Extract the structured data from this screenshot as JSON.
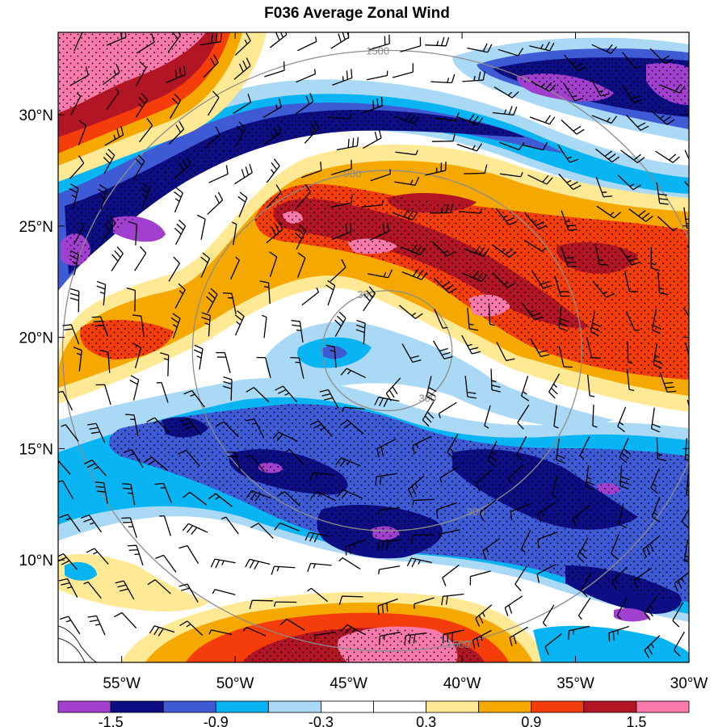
{
  "chart_data": {
    "type": "heatmap",
    "title": "F036 Average Zonal Wind",
    "x_axis": {
      "ticks": [
        -55,
        -50,
        -45,
        -40,
        -35,
        -30
      ],
      "tick_labels": [
        "55°W",
        "50°W",
        "45°W",
        "40°W",
        "35°W",
        "30°W"
      ],
      "range": [
        -57.8,
        -30
      ]
    },
    "y_axis": {
      "ticks": [
        10,
        15,
        20,
        25,
        30
      ],
      "tick_labels": [
        "10°N",
        "15°N",
        "20°N",
        "25°N",
        "30°N"
      ],
      "range": [
        5.4,
        33.7
      ]
    },
    "colorbar": {
      "colors": [
        "#a13fcf",
        "#0d0d84",
        "#3e5bd5",
        "#09b4f2",
        "#a9d9f5",
        "#ffffff",
        "#ffffff",
        "#ffe994",
        "#f5a800",
        "#f43d0a",
        "#b21524",
        "#f879aa"
      ],
      "labels": [
        "-1.5",
        "-0.9",
        "-0.3",
        "0.3",
        "0.9",
        "1.5"
      ],
      "label_values": [
        -1.5,
        -0.9,
        -0.3,
        0.3,
        0.9,
        1.5
      ]
    },
    "range_rings": {
      "center": [
        -43.3,
        19.4
      ],
      "radii_km": [
        300,
        900,
        1500
      ],
      "labels": [
        "300",
        "900",
        "1500"
      ]
    },
    "features": [
      "wind barbs",
      "stippling marks significant areas",
      "coastline in lower-left corner"
    ]
  }
}
